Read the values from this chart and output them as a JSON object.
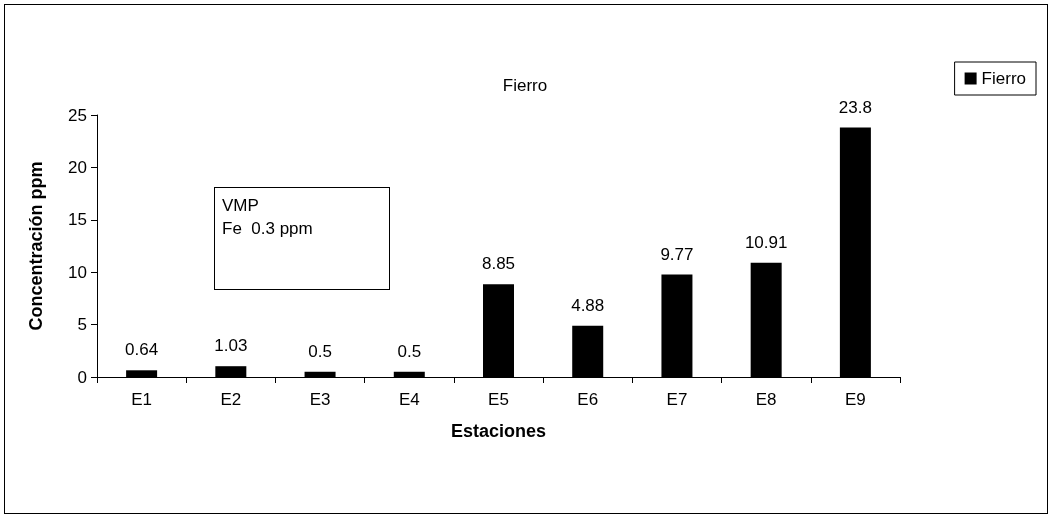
{
  "chart_data": {
    "type": "bar",
    "title": "Fierro",
    "xlabel": "Estaciones",
    "ylabel": "Concentración ppm",
    "categories": [
      "E1",
      "E2",
      "E3",
      "E4",
      "E5",
      "E6",
      "E7",
      "E8",
      "E9"
    ],
    "series": [
      {
        "name": "Fierro",
        "color": "#000000",
        "values": [
          0.64,
          1.03,
          0.5,
          0.5,
          8.85,
          4.88,
          9.77,
          10.91,
          23.8
        ]
      }
    ],
    "ylim": [
      0,
      25
    ],
    "yticks": [
      0,
      5,
      10,
      15,
      20,
      25
    ],
    "grid": false,
    "legend": "top right",
    "data_labels": true,
    "annotations": [
      "VMP\nFe  0.3 ppm"
    ]
  }
}
